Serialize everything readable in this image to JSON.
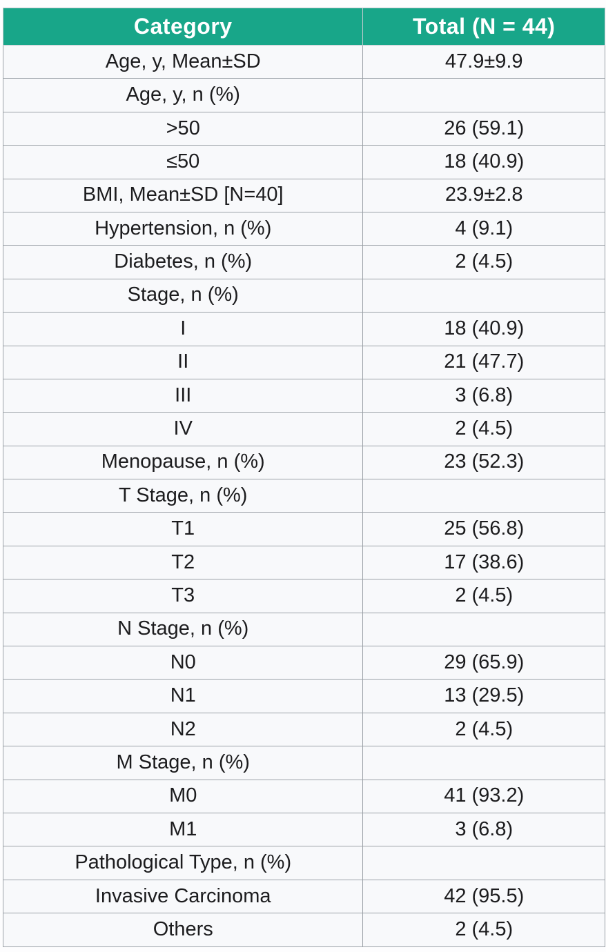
{
  "colors": {
    "page_bg": "#fdfdfe",
    "header_bg": "#18a689",
    "header_text": "#ffffff",
    "row_bg": "#f8f9fb",
    "border": "#9aa0a6",
    "header_divider": "#c5cbd0",
    "text": "#1c1c1e"
  },
  "table": {
    "header": {
      "category": "Category",
      "total": "Total (N = 44)"
    },
    "rows": [
      {
        "category": "Age, y, Mean±SD",
        "total": "47.9±9.9"
      },
      {
        "category": "Age, y, n (%)",
        "total": ""
      },
      {
        "category": ">50",
        "total": "26 (59.1)"
      },
      {
        "category": "≤50",
        "total": "18 (40.9)"
      },
      {
        "category": "BMI, Mean±SD [N=40]",
        "total": "23.9±2.8"
      },
      {
        "category": "Hypertension, n (%)",
        "total": "4 (9.1)"
      },
      {
        "category": "Diabetes, n (%)",
        "total": "2 (4.5)"
      },
      {
        "category": "Stage, n (%)",
        "total": ""
      },
      {
        "category": "I",
        "total": "18 (40.9)"
      },
      {
        "category": "II",
        "total": "21 (47.7)"
      },
      {
        "category": "III",
        "total": "3 (6.8)"
      },
      {
        "category": "IV",
        "total": "2 (4.5)"
      },
      {
        "category": "Menopause, n (%)",
        "total": "23 (52.3)"
      },
      {
        "category": "T Stage, n (%)",
        "total": ""
      },
      {
        "category": "T1",
        "total": "25 (56.8)"
      },
      {
        "category": "T2",
        "total": "17 (38.6)"
      },
      {
        "category": "T3",
        "total": "2 (4.5)"
      },
      {
        "category": "N Stage, n (%)",
        "total": ""
      },
      {
        "category": "N0",
        "total": "29 (65.9)"
      },
      {
        "category": "N1",
        "total": "13 (29.5)"
      },
      {
        "category": "N2",
        "total": "2 (4.5)"
      },
      {
        "category": "M Stage, n (%)",
        "total": ""
      },
      {
        "category": "M0",
        "total": "41 (93.2)"
      },
      {
        "category": "M1",
        "total": "3 (6.8)"
      },
      {
        "category": "Pathological Type, n (%)",
        "total": ""
      },
      {
        "category": "Invasive Carcinoma",
        "total": "42 (95.5)"
      },
      {
        "category": "Others",
        "total": "2 (4.5)"
      }
    ]
  },
  "chart_data": {
    "type": "table",
    "title": "Total (N = 44)",
    "columns": [
      "Category",
      "Total (N = 44)"
    ],
    "rows": [
      [
        "Age, y, Mean±SD",
        "47.9±9.9"
      ],
      [
        "Age, y, n (%)",
        ""
      ],
      [
        ">50",
        "26 (59.1)"
      ],
      [
        "≤50",
        "18 (40.9)"
      ],
      [
        "BMI, Mean±SD [N=40]",
        "23.9±2.8"
      ],
      [
        "Hypertension, n (%)",
        "4 (9.1)"
      ],
      [
        "Diabetes, n (%)",
        "2 (4.5)"
      ],
      [
        "Stage, n (%)",
        ""
      ],
      [
        "I",
        "18 (40.9)"
      ],
      [
        "II",
        "21 (47.7)"
      ],
      [
        "III",
        "3 (6.8)"
      ],
      [
        "IV",
        "2 (4.5)"
      ],
      [
        "Menopause, n (%)",
        "23 (52.3)"
      ],
      [
        "T Stage, n (%)",
        ""
      ],
      [
        "T1",
        "25 (56.8)"
      ],
      [
        "T2",
        "17 (38.6)"
      ],
      [
        "T3",
        "2 (4.5)"
      ],
      [
        "N Stage, n (%)",
        ""
      ],
      [
        "N0",
        "29 (65.9)"
      ],
      [
        "N1",
        "13 (29.5)"
      ],
      [
        "N2",
        "2 (4.5)"
      ],
      [
        "M Stage, n (%)",
        ""
      ],
      [
        "M0",
        "41 (93.2)"
      ],
      [
        "M1",
        "3 (6.8)"
      ],
      [
        "Pathological Type, n (%)",
        ""
      ],
      [
        "Invasive Carcinoma",
        "42 (95.5)"
      ],
      [
        "Others",
        "2 (4.5)"
      ]
    ]
  }
}
